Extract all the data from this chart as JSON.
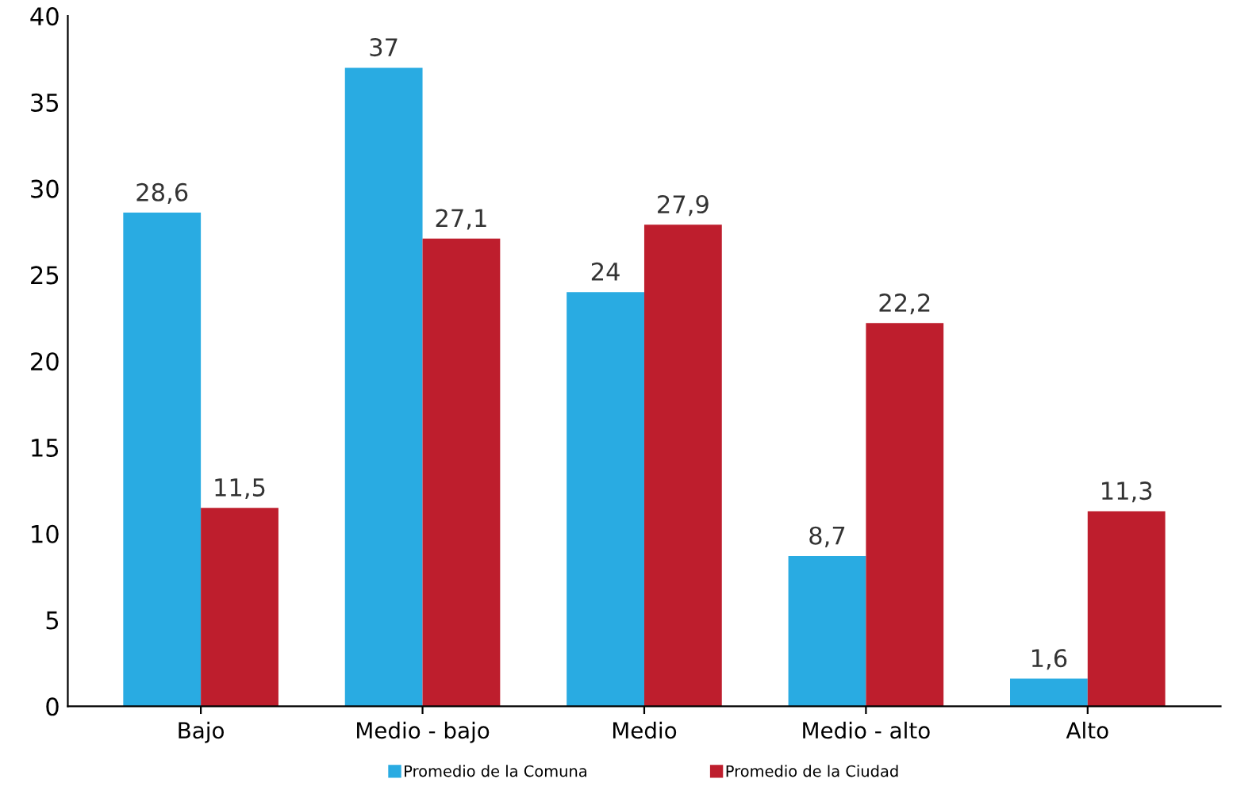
{
  "chart_data": {
    "type": "bar",
    "categories": [
      "Bajo",
      "Medio - bajo",
      "Medio",
      "Medio - alto",
      "Alto"
    ],
    "series": [
      {
        "name": "Promedio de la Comuna",
        "color": "#29abe2",
        "values": [
          28.6,
          37,
          24,
          8.7,
          1.6
        ],
        "value_labels": [
          "28,6",
          "37",
          "24",
          "8,7",
          "1,6"
        ]
      },
      {
        "name": "Promedio de la Ciudad",
        "color": "#be1e2d",
        "values": [
          11.5,
          27.1,
          27.9,
          22.2,
          11.3
        ],
        "value_labels": [
          "11,5",
          "27,1",
          "27,9",
          "22,2",
          "11,3"
        ]
      }
    ],
    "ylim": [
      0,
      40
    ],
    "yticks": [
      0,
      5,
      10,
      15,
      20,
      25,
      30,
      35,
      40
    ],
    "grid": false,
    "legend": "bottom"
  }
}
